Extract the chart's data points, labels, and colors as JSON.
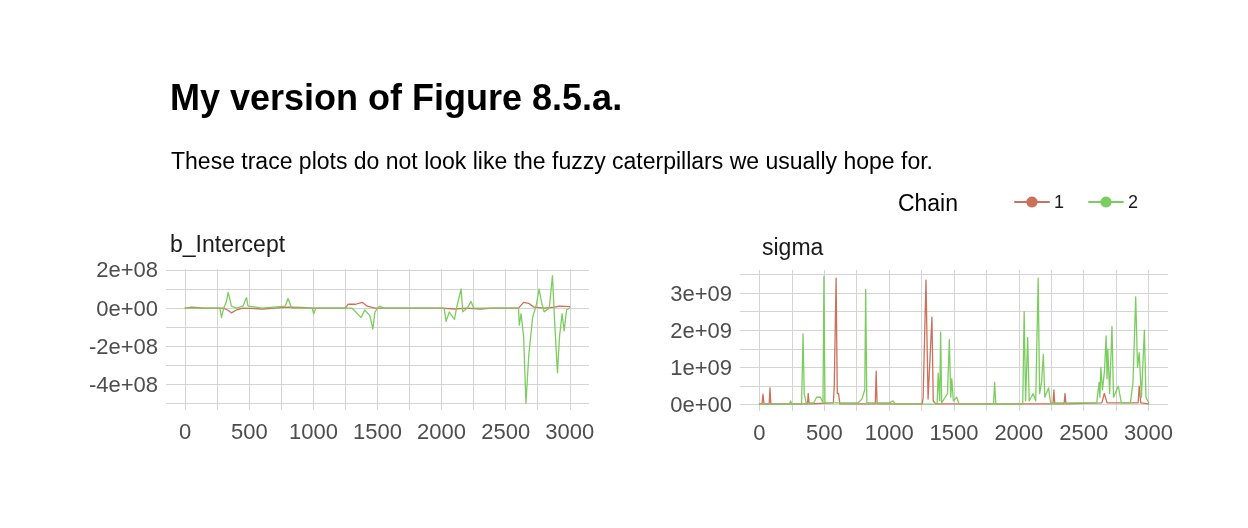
{
  "chart_data": [
    {
      "type": "line",
      "title": "My version of Figure 8.5.a.",
      "subtitle": "These trace plots do not look like the fuzzy caterpillars we usually hope for.",
      "annotations": [
        "b_Intercept"
      ],
      "legend_title": "Chain",
      "legend": "top right",
      "grid": true,
      "marker": "none",
      "xlim": [
        -150,
        3150
      ],
      "xticks": [
        0,
        {
          "value": 250,
          "label": null
        },
        500,
        {
          "value": 750,
          "label": null
        },
        1000,
        {
          "value": 1250,
          "label": null
        },
        1500,
        {
          "value": 1750,
          "label": null
        },
        2000,
        {
          "value": 2250,
          "label": null
        },
        2500,
        {
          "value": 2750,
          "label": null
        },
        3000
      ],
      "ylim": [
        -535000000.0,
        205000000.0
      ],
      "yticks": [
        {
          "value": -500000000.0,
          "label": null
        },
        {
          "value": -400000000.0,
          "label": "-4e+08"
        },
        {
          "value": -300000000.0,
          "label": null
        },
        {
          "value": -200000000.0,
          "label": "-2e+08"
        },
        {
          "value": -100000000.0,
          "label": null
        },
        {
          "value": 0,
          "label": "0e+00"
        },
        {
          "value": 100000000.0,
          "label": null
        },
        {
          "value": 200000000.0,
          "label": "2e+08"
        }
      ],
      "series": [
        {
          "name": "1",
          "color": "#cd7058",
          "x": [
            0,
            50,
            150,
            300,
            330,
            360,
            400,
            450,
            600,
            700,
            800,
            900,
            1000,
            1250,
            1270,
            1330,
            1380,
            1420,
            1480,
            2000,
            2100,
            2200,
            2300,
            2400,
            2600,
            2640,
            2680,
            2720,
            2800,
            2880,
            2920,
            3000
          ],
          "values": [
            0,
            5000000.0,
            0,
            0,
            -10000000.0,
            -25000000.0,
            -10000000.0,
            0,
            -5000000.0,
            0,
            5000000.0,
            3000000.0,
            0,
            0,
            20000000.0,
            20000000.0,
            30000000.0,
            10000000.0,
            0,
            0,
            -5000000.0,
            0,
            -5000000.0,
            0,
            0,
            30000000.0,
            25000000.0,
            5000000.0,
            0,
            5000000.0,
            10000000.0,
            8000000.0
          ]
        },
        {
          "name": "2",
          "color": "#7ccd5f",
          "x": [
            0,
            270,
            283,
            300,
            320,
            335,
            350,
            360,
            400,
            450,
            478,
            490,
            600,
            780,
            802,
            830,
            990,
            1002,
            1020,
            1300,
            1373,
            1400,
            1440,
            1464,
            1480,
            1516,
            1550,
            2020,
            2035,
            2060,
            2100,
            2120,
            2152,
            2165,
            2200,
            2230,
            2250,
            2600,
            2606,
            2620,
            2640,
            2658,
            2680,
            2710,
            2740,
            2761,
            2780,
            2800,
            2840,
            2865,
            2880,
            2904,
            2920,
            2940,
            2956,
            2975,
            3000
          ],
          "values": [
            0,
            0,
            -50000000.0,
            0,
            30000000.0,
            82000000.0,
            40000000.0,
            10000000.0,
            0,
            10000000.0,
            55000000.0,
            10000000.0,
            0,
            10000000.0,
            50000000.0,
            0,
            0,
            -30000000.0,
            0,
            0,
            -50000000.0,
            -10000000.0,
            -40000000.0,
            -110000000.0,
            -20000000.0,
            10000000.0,
            0,
            0,
            -70000000.0,
            -20000000.0,
            -60000000.0,
            10000000.0,
            100000000.0,
            -20000000.0,
            0,
            35000000.0,
            0,
            0,
            -90000000.0,
            -30000000.0,
            -150000000.0,
            -500000000.0,
            -250000000.0,
            -50000000.0,
            20000000.0,
            100000000.0,
            30000000.0,
            -20000000.0,
            0,
            170000000.0,
            -50000000.0,
            -340000000.0,
            -150000000.0,
            -30000000.0,
            -120000000.0,
            -10000000.0,
            0
          ]
        }
      ]
    },
    {
      "type": "line",
      "title": "sigma",
      "grid": true,
      "marker": "none",
      "xlim": [
        -150,
        3150
      ],
      "xticks": [
        0,
        {
          "value": 250,
          "label": null
        },
        500,
        {
          "value": 750,
          "label": null
        },
        1000,
        {
          "value": 1250,
          "label": null
        },
        1500,
        {
          "value": 1750,
          "label": null
        },
        2000,
        {
          "value": 2250,
          "label": null
        },
        2500,
        {
          "value": 2750,
          "label": null
        },
        3000
      ],
      "ylim": [
        -170000000.0,
        3620000000.0
      ],
      "yticks": [
        {
          "value": 0,
          "label": "0e+00"
        },
        {
          "value": 500000000.0,
          "label": null
        },
        {
          "value": 1000000000.0,
          "label": "1e+09"
        },
        {
          "value": 1500000000.0,
          "label": null
        },
        {
          "value": 2000000000.0,
          "label": "2e+09"
        },
        {
          "value": 2500000000.0,
          "label": null
        },
        {
          "value": 3000000000.0,
          "label": "3e+09"
        },
        {
          "value": 3500000000.0,
          "label": null
        }
      ],
      "series": [
        {
          "name": "1",
          "color": "#cd7058",
          "x": [
            0,
            20,
            27,
            35,
            75,
            81,
            88,
            370,
            376,
            383,
            570,
            577,
            591,
            600,
            610,
            620,
            893,
            900,
            907,
            1255,
            1262,
            1284,
            1300,
            1330,
            1340,
            1360,
            2263,
            2270,
            2277,
            2349,
            2356,
            2363,
            2640,
            2659,
            2680,
            2920,
            2928,
            2940,
            3000
          ],
          "values": [
            20000000.0,
            20000000.0,
            280000000.0,
            20000000.0,
            20000000.0,
            450000000.0,
            20000000.0,
            20000000.0,
            300000000.0,
            20000000.0,
            50000000.0,
            550000000.0,
            3400000000.0,
            300000000.0,
            300000000.0,
            20000000.0,
            20000000.0,
            900000000.0,
            20000000.0,
            20000000.0,
            200000000.0,
            3350000000.0,
            150000000.0,
            2350000000.0,
            100000000.0,
            20000000.0,
            20000000.0,
            400000000.0,
            20000000.0,
            20000000.0,
            300000000.0,
            20000000.0,
            50000000.0,
            300000000.0,
            50000000.0,
            50000000.0,
            500000000.0,
            50000000.0,
            20000000.0
          ]
        },
        {
          "name": "2",
          "color": "#7ccd5f",
          "x": [
            0,
            230,
            240,
            250,
            325,
            336,
            345,
            360,
            420,
            440,
            470,
            490,
            497,
            505,
            760,
            790,
            812,
            819,
            828,
            1000,
            1030,
            1050,
            1370,
            1378,
            1390,
            1397,
            1405,
            1450,
            1464,
            1475,
            1483,
            1495,
            1520,
            1540,
            1805,
            1813,
            1822,
            2030,
            2041,
            2052,
            2068,
            2080,
            2110,
            2130,
            2149,
            2160,
            2175,
            2189,
            2200,
            2229,
            2245,
            2600,
            2619,
            2625,
            2632,
            2645,
            2660,
            2673,
            2680,
            2686,
            2700,
            2718,
            2730,
            2767,
            2790,
            2860,
            2880,
            2901,
            2915,
            2928,
            2945,
            2968,
            2980,
            3000
          ],
          "values": [
            10000000.0,
            10000000.0,
            100000000.0,
            10000000.0,
            10000000.0,
            1900000000.0,
            300000000.0,
            50000000.0,
            50000000.0,
            200000000.0,
            200000000.0,
            50000000.0,
            3450000000.0,
            50000000.0,
            50000000.0,
            150000000.0,
            400000000.0,
            3100000000.0,
            50000000.0,
            50000000.0,
            100000000.0,
            10000000.0,
            20000000.0,
            850000000.0,
            100000000.0,
            1950000000.0,
            50000000.0,
            300000000.0,
            1750000000.0,
            200000000.0,
            700000000.0,
            100000000.0,
            200000000.0,
            10000000.0,
            10000000.0,
            600000000.0,
            10000000.0,
            10000000.0,
            2500000000.0,
            100000000.0,
            1800000000.0,
            100000000.0,
            300000000.0,
            100000000.0,
            3400000000.0,
            300000000.0,
            600000000.0,
            1350000000.0,
            200000000.0,
            450000000.0,
            50000000.0,
            50000000.0,
            600000000.0,
            200000000.0,
            1000000000.0,
            400000000.0,
            900000000.0,
            1850000000.0,
            700000000.0,
            1500000000.0,
            300000000.0,
            2100000000.0,
            200000000.0,
            500000000.0,
            50000000.0,
            50000000.0,
            600000000.0,
            2900000000.0,
            1000000000.0,
            1400000000.0,
            200000000.0,
            2000000000.0,
            200000000.0,
            50000000.0
          ]
        }
      ]
    }
  ]
}
